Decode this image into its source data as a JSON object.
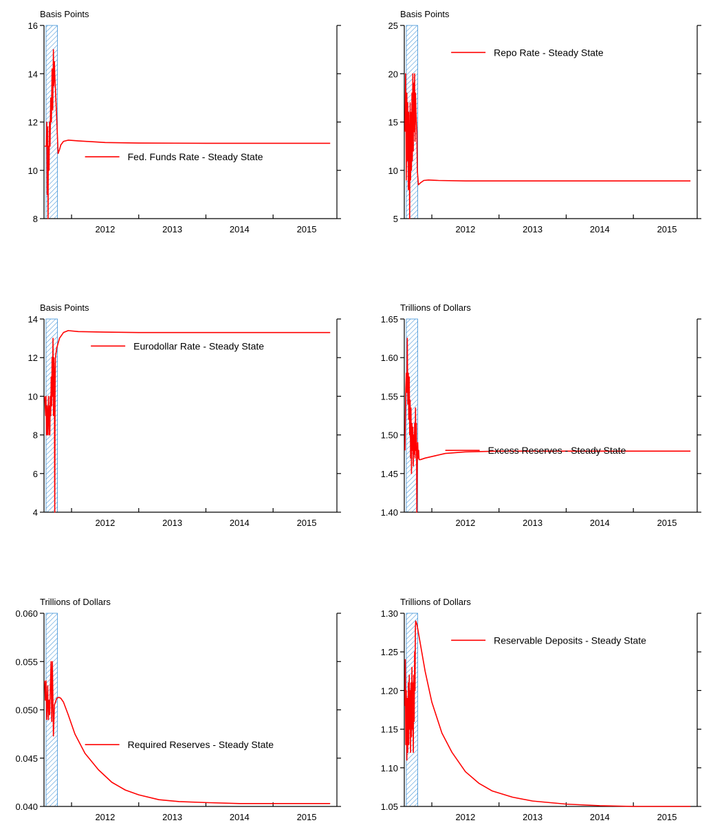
{
  "figure": {
    "colors": {
      "series": "#ff0000",
      "shade_hatch": "#3a8fd6",
      "axis": "#000000"
    },
    "x_axis_ticks": [
      "2012",
      "2013",
      "2014",
      "2015"
    ]
  },
  "chart_data": [
    {
      "type": "line",
      "ylabel": "Basis Points",
      "ylim": [
        8,
        16
      ],
      "yticks": [
        "8",
        "10",
        "12",
        "14",
        "16"
      ],
      "xlim": [
        2011.59,
        2015.95
      ],
      "xticks": [
        2012,
        2013,
        2014,
        2015
      ],
      "shade": [
        2011.62,
        2011.79
      ],
      "legend_position": "center-right",
      "series": [
        {
          "name": "Fed. Funds Rate - Steady State",
          "x": [
            2011.6,
            2011.625,
            2011.632,
            2011.638,
            2011.645,
            2011.65,
            2011.655,
            2011.665,
            2011.672,
            2011.68,
            2011.69,
            2011.7,
            2011.71,
            2011.72,
            2011.73,
            2011.735,
            2011.74,
            2011.745,
            2011.75,
            2011.78,
            2011.8,
            2011.82,
            2011.84,
            2011.88,
            2011.95,
            2012.1,
            2012.5,
            2013.0,
            2014.0,
            2015.0,
            2015.85
          ],
          "y": [
            11,
            11,
            12,
            9,
            11.8,
            8,
            11,
            10,
            12,
            11,
            13,
            12,
            14.2,
            12.5,
            15,
            13.5,
            14,
            14.5,
            14,
            12.1,
            10.7,
            10.85,
            11.05,
            11.2,
            11.25,
            11.22,
            11.15,
            11.13,
            11.12,
            11.12,
            11.12
          ]
        }
      ]
    },
    {
      "type": "line",
      "ylabel": "Basis Points",
      "ylim": [
        5,
        25
      ],
      "yticks": [
        "5",
        "10",
        "15",
        "20",
        "25"
      ],
      "xlim": [
        2011.59,
        2015.95
      ],
      "xticks": [
        2012,
        2013,
        2014,
        2015
      ],
      "shade": [
        2011.62,
        2011.79
      ],
      "legend_position": "top-right",
      "series": [
        {
          "name": "Repo Rate - Steady State",
          "x": [
            2011.6,
            2011.61,
            2011.62,
            2011.628,
            2011.635,
            2011.642,
            2011.65,
            2011.657,
            2011.664,
            2011.67,
            2011.677,
            2011.684,
            2011.69,
            2011.697,
            2011.704,
            2011.71,
            2011.717,
            2011.724,
            2011.73,
            2011.737,
            2011.744,
            2011.75,
            2011.757,
            2011.764,
            2011.77,
            2011.777,
            2011.784,
            2011.8,
            2011.83,
            2011.88,
            2011.95,
            2012.1,
            2012.5,
            2013.0,
            2014.0,
            2015.85
          ],
          "y": [
            14,
            20,
            9,
            18,
            11,
            17,
            8,
            16,
            12,
            5,
            17,
            9,
            16,
            10,
            18,
            11,
            20,
            12,
            19,
            14,
            20,
            13,
            18,
            16,
            15,
            14,
            10,
            8.5,
            8.7,
            8.95,
            9.0,
            8.95,
            8.9,
            8.9,
            8.9,
            8.9
          ]
        }
      ]
    },
    {
      "type": "line",
      "ylabel": "Basis Points",
      "ylim": [
        4,
        14
      ],
      "yticks": [
        "4",
        "6",
        "8",
        "10",
        "12",
        "14"
      ],
      "xlim": [
        2011.59,
        2015.95
      ],
      "xticks": [
        2012,
        2013,
        2014,
        2015
      ],
      "shade": [
        2011.62,
        2011.79
      ],
      "legend_position": "top-right",
      "series": [
        {
          "name": "Eurodollar Rate - Steady State",
          "x": [
            2011.6,
            2011.615,
            2011.62,
            2011.628,
            2011.635,
            2011.642,
            2011.65,
            2011.657,
            2011.664,
            2011.67,
            2011.677,
            2011.684,
            2011.69,
            2011.697,
            2011.704,
            2011.71,
            2011.717,
            2011.724,
            2011.73,
            2011.737,
            2011.744,
            2011.75,
            2011.755,
            2011.76,
            2011.78,
            2011.82,
            2011.88,
            2011.95,
            2012.1,
            2012.5,
            2013.0,
            2014.0,
            2015.85
          ],
          "y": [
            10,
            9,
            10,
            8,
            9.5,
            8,
            9,
            10,
            8,
            9.5,
            8,
            10,
            9,
            11,
            9.5,
            12,
            10,
            13,
            9,
            12,
            11,
            4,
            10,
            12,
            12.5,
            13,
            13.3,
            13.4,
            13.35,
            13.32,
            13.3,
            13.3,
            13.3
          ]
        }
      ]
    },
    {
      "type": "line",
      "ylabel": "Trillions of Dollars",
      "ylim": [
        1.4,
        1.65
      ],
      "yticks": [
        "1.40",
        "1.45",
        "1.50",
        "1.55",
        "1.60",
        "1.65"
      ],
      "xlim": [
        2011.59,
        2015.95
      ],
      "xticks": [
        2012,
        2013,
        2014,
        2015
      ],
      "shade": [
        2011.62,
        2011.79
      ],
      "legend_position": "center-right",
      "series": [
        {
          "name": "Excess Reserves - Steady State",
          "x": [
            2011.6,
            2011.605,
            2011.612,
            2011.62,
            2011.628,
            2011.635,
            2011.642,
            2011.65,
            2011.657,
            2011.664,
            2011.67,
            2011.677,
            2011.684,
            2011.69,
            2011.697,
            2011.704,
            2011.71,
            2011.717,
            2011.724,
            2011.73,
            2011.737,
            2011.744,
            2011.75,
            2011.757,
            2011.764,
            2011.77,
            2011.777,
            2011.784,
            2011.79,
            2011.797,
            2011.804,
            2011.81,
            2011.83,
            2011.9,
            2012.0,
            2012.2,
            2012.5,
            2013.0,
            2013.5,
            2014.0,
            2015.85
          ],
          "y": [
            1.48,
            1.52,
            1.56,
            1.58,
            1.555,
            1.625,
            1.54,
            1.58,
            1.52,
            1.575,
            1.5,
            1.545,
            1.47,
            1.535,
            1.45,
            1.515,
            1.48,
            1.51,
            1.46,
            1.5,
            1.475,
            1.515,
            1.47,
            1.535,
            1.48,
            1.515,
            1.4,
            1.47,
            1.49,
            1.47,
            1.48,
            1.468,
            1.468,
            1.47,
            1.472,
            1.476,
            1.478,
            1.479,
            1.479,
            1.479,
            1.479
          ]
        }
      ]
    },
    {
      "type": "line",
      "ylabel": "Trillions of Dollars",
      "ylim": [
        0.04,
        0.06
      ],
      "yticks": [
        "0.040",
        "0.045",
        "0.050",
        "0.055",
        "0.060"
      ],
      "xlim": [
        2011.59,
        2015.95
      ],
      "xticks": [
        2012,
        2013,
        2014,
        2015
      ],
      "shade": [
        2011.62,
        2011.79
      ],
      "legend_position": "center-right",
      "series": [
        {
          "name": "Required Reserves - Steady State",
          "x": [
            2011.6,
            2011.61,
            2011.62,
            2011.63,
            2011.645,
            2011.655,
            2011.665,
            2011.675,
            2011.685,
            2011.695,
            2011.705,
            2011.715,
            2011.73,
            2011.745,
            2011.76,
            2011.78,
            2011.81,
            2011.84,
            2011.88,
            2011.95,
            2012.05,
            2012.2,
            2012.4,
            2012.6,
            2012.8,
            2013.0,
            2013.3,
            2013.6,
            2014.0,
            2014.5,
            2015.0,
            2015.85
          ],
          "y": [
            0.053,
            0.051,
            0.053,
            0.049,
            0.0525,
            0.049,
            0.051,
            0.0495,
            0.0525,
            0.055,
            0.0488,
            0.055,
            0.0473,
            0.0505,
            0.0508,
            0.0512,
            0.0513,
            0.0512,
            0.0508,
            0.0495,
            0.0475,
            0.0455,
            0.0438,
            0.0425,
            0.0417,
            0.0412,
            0.0407,
            0.0405,
            0.0404,
            0.0403,
            0.0403,
            0.0403
          ]
        }
      ]
    },
    {
      "type": "line",
      "ylabel": "Trillions of Dollars",
      "ylim": [
        1.05,
        1.3
      ],
      "yticks": [
        "1.05",
        "1.10",
        "1.15",
        "1.20",
        "1.25",
        "1.30"
      ],
      "xlim": [
        2011.59,
        2015.95
      ],
      "xticks": [
        2012,
        2013,
        2014,
        2015
      ],
      "shade": [
        2011.62,
        2011.79
      ],
      "legend_position": "top-right",
      "series": [
        {
          "name": "Reservable Deposits - Steady State",
          "x": [
            2011.6,
            2011.605,
            2011.612,
            2011.62,
            2011.628,
            2011.635,
            2011.642,
            2011.65,
            2011.657,
            2011.664,
            2011.67,
            2011.677,
            2011.684,
            2011.69,
            2011.697,
            2011.704,
            2011.71,
            2011.717,
            2011.724,
            2011.73,
            2011.737,
            2011.744,
            2011.75,
            2011.755,
            2011.76,
            2011.78,
            2011.8,
            2011.85,
            2011.9,
            2012.0,
            2012.15,
            2012.3,
            2012.5,
            2012.7,
            2012.9,
            2013.2,
            2013.5,
            2014.0,
            2014.5,
            2015.0,
            2015.85
          ],
          "y": [
            1.18,
            1.24,
            1.13,
            1.2,
            1.11,
            1.19,
            1.12,
            1.21,
            1.13,
            1.22,
            1.15,
            1.2,
            1.12,
            1.21,
            1.14,
            1.23,
            1.15,
            1.21,
            1.12,
            1.22,
            1.16,
            1.25,
            1.2,
            1.28,
            1.29,
            1.285,
            1.275,
            1.25,
            1.225,
            1.185,
            1.145,
            1.12,
            1.095,
            1.08,
            1.07,
            1.062,
            1.057,
            1.053,
            1.051,
            1.05,
            1.05
          ]
        }
      ]
    }
  ]
}
